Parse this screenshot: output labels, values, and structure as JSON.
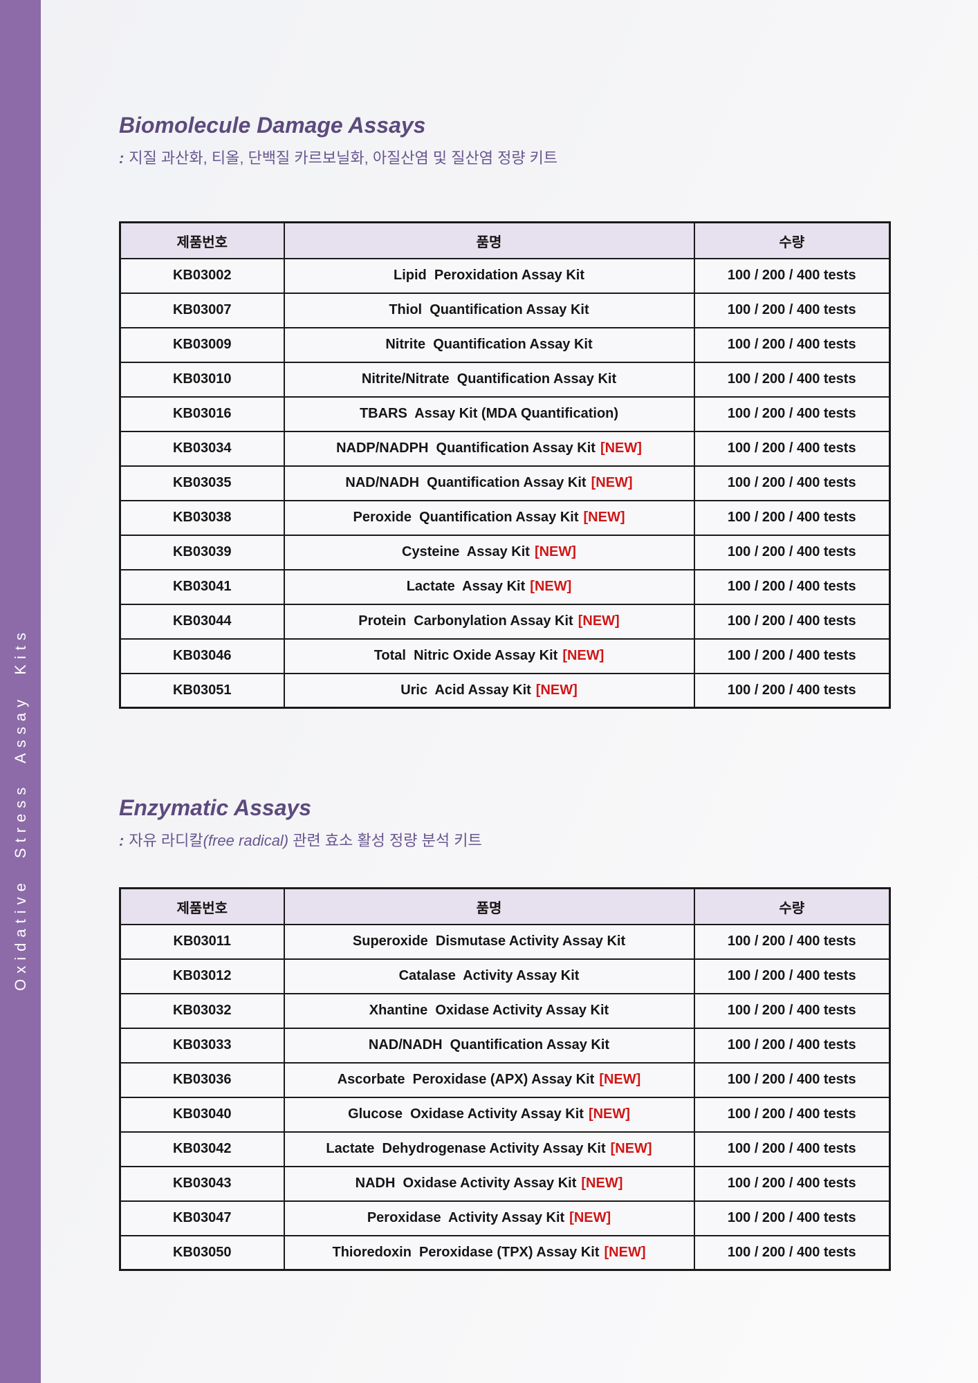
{
  "colors": {
    "sidebar": "#8d6ba8",
    "title": "#5c4a7d",
    "subtitle": "#685690",
    "header_bg": "#e7e0ee",
    "row_bg": "#f8f8fa",
    "border": "#1a1a1a",
    "new_badge": "#d01616",
    "cell_text": "#151515",
    "sidebar_text": "#ffffff"
  },
  "sidebar": {
    "vertical_label": "Oxidative Stress Assay Kits"
  },
  "new_label": "[NEW]",
  "sections": [
    {
      "title": "Biomolecule Damage Assays",
      "subtitle": {
        "prefix": ":",
        "seg1": "지질 과산화, 티올, 단백질 카르보닐화, 아질산염 및 질산염 정량 키트",
        "italic": "",
        "seg2": ""
      },
      "table": {
        "headers": [
          "제품번호",
          "품명",
          "수량"
        ],
        "rows": [
          {
            "code": "KB03002",
            "name": "Lipid  Peroxidation Assay Kit",
            "is_new": false,
            "qty": "100 / 200 / 400 tests"
          },
          {
            "code": "KB03007",
            "name": "Thiol  Quantification Assay Kit",
            "is_new": false,
            "qty": "100 / 200 / 400 tests"
          },
          {
            "code": "KB03009",
            "name": "Nitrite  Quantification Assay Kit",
            "is_new": false,
            "qty": "100 / 200 / 400 tests"
          },
          {
            "code": "KB03010",
            "name": "Nitrite/Nitrate  Quantification Assay Kit",
            "is_new": false,
            "qty": "100 / 200 / 400 tests"
          },
          {
            "code": "KB03016",
            "name": "TBARS  Assay Kit (MDA Quantification)",
            "is_new": false,
            "qty": "100 / 200 / 400 tests"
          },
          {
            "code": "KB03034",
            "name": "NADP/NADPH  Quantification Assay Kit",
            "is_new": true,
            "qty": "100 / 200 / 400 tests"
          },
          {
            "code": "KB03035",
            "name": "NAD/NADH  Quantification Assay Kit",
            "is_new": true,
            "qty": "100 / 200 / 400 tests"
          },
          {
            "code": "KB03038",
            "name": "Peroxide  Quantification Assay Kit",
            "is_new": true,
            "qty": "100 / 200 / 400 tests"
          },
          {
            "code": "KB03039",
            "name": "Cysteine  Assay Kit",
            "is_new": true,
            "qty": "100 / 200 / 400 tests"
          },
          {
            "code": "KB03041",
            "name": "Lactate  Assay Kit",
            "is_new": true,
            "qty": "100 / 200 / 400 tests"
          },
          {
            "code": "KB03044",
            "name": "Protein  Carbonylation Assay Kit",
            "is_new": true,
            "qty": "100 / 200 / 400 tests"
          },
          {
            "code": "KB03046",
            "name": "Total  Nitric Oxide Assay Kit",
            "is_new": true,
            "qty": "100 / 200 / 400 tests"
          },
          {
            "code": "KB03051",
            "name": "Uric  Acid Assay Kit",
            "is_new": true,
            "qty": "100 / 200 / 400 tests"
          }
        ]
      }
    },
    {
      "title": "Enzymatic Assays",
      "subtitle": {
        "prefix": ":",
        "seg1": "자유 라디칼",
        "italic": "(free radical)",
        "seg2": " 관련 효소 활성 정량 분석 키트"
      },
      "table": {
        "headers": [
          "제품번호",
          "품명",
          "수량"
        ],
        "rows": [
          {
            "code": "KB03011",
            "name": "Superoxide  Dismutase Activity Assay Kit",
            "is_new": false,
            "qty": "100 / 200 / 400 tests"
          },
          {
            "code": "KB03012",
            "name": "Catalase  Activity Assay Kit",
            "is_new": false,
            "qty": "100 / 200 / 400 tests"
          },
          {
            "code": "KB03032",
            "name": "Xhantine  Oxidase Activity Assay Kit",
            "is_new": false,
            "qty": "100 / 200 / 400 tests"
          },
          {
            "code": "KB03033",
            "name": "NAD/NADH  Quantification Assay Kit",
            "is_new": false,
            "qty": "100 / 200 / 400 tests"
          },
          {
            "code": "KB03036",
            "name": "Ascorbate  Peroxidase (APX) Assay Kit",
            "is_new": true,
            "qty": "100 / 200 / 400 tests"
          },
          {
            "code": "KB03040",
            "name": "Glucose  Oxidase Activity Assay Kit",
            "is_new": true,
            "qty": "100 / 200 / 400 tests"
          },
          {
            "code": "KB03042",
            "name": "Lactate  Dehydrogenase Activity Assay Kit",
            "is_new": true,
            "qty": "100 / 200 / 400 tests"
          },
          {
            "code": "KB03043",
            "name": "NADH  Oxidase Activity Assay Kit",
            "is_new": true,
            "qty": "100 / 200 / 400 tests"
          },
          {
            "code": "KB03047",
            "name": "Peroxidase  Activity Assay Kit",
            "is_new": true,
            "qty": "100 / 200 / 400 tests"
          },
          {
            "code": "KB03050",
            "name": "Thioredoxin  Peroxidase (TPX) Assay Kit",
            "is_new": true,
            "qty": "100 / 200 / 400 tests"
          }
        ]
      }
    }
  ]
}
